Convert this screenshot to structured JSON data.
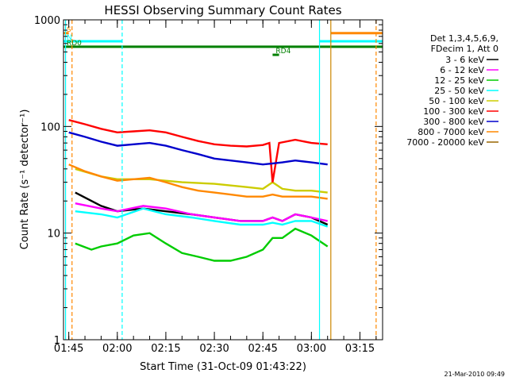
{
  "chart_data": {
    "type": "line",
    "title": "HESSI Observing Summary Count Rates",
    "xlabel": "Start Time (31-Oct-09 01:43:22)",
    "ylabel": "Count Rate (s⁻¹ detector⁻¹)",
    "y_scale": "log",
    "ylim": [
      1,
      1000
    ],
    "xlim": [
      "01:43:22",
      "03:22:00"
    ],
    "x_ticks": [
      "01:45",
      "02:00",
      "02:15",
      "02:30",
      "02:45",
      "03:00",
      "03:15"
    ],
    "y_ticks": [
      "1",
      "10",
      "100",
      "1000"
    ],
    "grid": false,
    "legend_position": "right",
    "legend_header": [
      "Det 1,3,4,5,6,9,",
      "FDecim 1, Att 0"
    ],
    "series": [
      {
        "name": "3 - 6 keV",
        "color": "#000000",
        "x": [
          "01:47",
          "01:55",
          "02:00",
          "02:08",
          "02:15",
          "02:23",
          "02:30",
          "02:38",
          "02:45",
          "02:48",
          "02:51",
          "02:55",
          "03:00",
          "03:05"
        ],
        "y": [
          24,
          18,
          16,
          17,
          16,
          15,
          14,
          13,
          13,
          14,
          13,
          15,
          14,
          12
        ]
      },
      {
        "name": "6 - 12 keV",
        "color": "#ff00ff",
        "x": [
          "01:47",
          "01:55",
          "02:00",
          "02:08",
          "02:15",
          "02:23",
          "02:30",
          "02:38",
          "02:45",
          "02:48",
          "02:51",
          "02:55",
          "03:00",
          "03:05"
        ],
        "y": [
          19,
          17,
          16,
          18,
          17,
          15,
          14,
          13,
          13,
          14,
          13,
          15,
          14,
          13
        ]
      },
      {
        "name": "12 - 25 keV",
        "color": "#00cc00",
        "x": [
          "01:47",
          "01:52",
          "01:55",
          "02:00",
          "02:05",
          "02:10",
          "02:15",
          "02:20",
          "02:25",
          "02:30",
          "02:35",
          "02:40",
          "02:45",
          "02:48",
          "02:51",
          "02:55",
          "03:00",
          "03:05"
        ],
        "y": [
          8,
          7,
          7.5,
          8,
          9.5,
          10,
          8,
          6.5,
          6,
          5.5,
          5.5,
          6,
          7,
          9,
          9,
          11,
          9.5,
          7.5
        ]
      },
      {
        "name": "25 - 50 keV",
        "color": "#00ffff",
        "x": [
          "01:47",
          "01:55",
          "02:00",
          "02:08",
          "02:15",
          "02:23",
          "02:30",
          "02:38",
          "02:45",
          "02:48",
          "02:51",
          "02:55",
          "03:00",
          "03:05"
        ],
        "y": [
          16,
          15,
          14,
          17,
          15,
          14,
          13,
          12,
          12,
          12.5,
          12,
          13,
          13,
          11.5
        ]
      },
      {
        "name": "50 - 100 keV",
        "color": "#cccc00",
        "x": [
          "01:47",
          "01:55",
          "02:00",
          "02:10",
          "02:20",
          "02:30",
          "02:40",
          "02:45",
          "02:48",
          "02:51",
          "02:55",
          "03:00",
          "03:05"
        ],
        "y": [
          40,
          34,
          32,
          32,
          30,
          29,
          27,
          26,
          30,
          26,
          25,
          25,
          24
        ]
      },
      {
        "name": "100 - 300 keV",
        "color": "#ff0000",
        "x": [
          "01:45",
          "01:50",
          "01:55",
          "02:00",
          "02:05",
          "02:10",
          "02:15",
          "02:20",
          "02:25",
          "02:30",
          "02:35",
          "02:40",
          "02:45",
          "02:47",
          "02:48",
          "02:50",
          "02:55",
          "03:00",
          "03:05"
        ],
        "y": [
          115,
          105,
          95,
          88,
          90,
          92,
          88,
          80,
          73,
          68,
          66,
          65,
          67,
          70,
          30,
          70,
          75,
          70,
          68
        ]
      },
      {
        "name": "300 - 800 keV",
        "color": "#0000cc",
        "x": [
          "01:45",
          "01:50",
          "01:55",
          "02:00",
          "02:05",
          "02:10",
          "02:15",
          "02:20",
          "02:25",
          "02:30",
          "02:35",
          "02:40",
          "02:45",
          "02:48",
          "02:51",
          "02:55",
          "03:00",
          "03:05"
        ],
        "y": [
          88,
          80,
          72,
          66,
          68,
          70,
          66,
          60,
          55,
          50,
          48,
          46,
          44,
          45,
          46,
          48,
          46,
          44
        ]
      },
      {
        "name": "800 - 7000 keV",
        "color": "#ff8800",
        "x": [
          "01:45",
          "01:50",
          "01:55",
          "02:00",
          "02:05",
          "02:10",
          "02:15",
          "02:20",
          "02:25",
          "02:30",
          "02:35",
          "02:40",
          "02:45",
          "02:48",
          "02:51",
          "02:55",
          "03:00",
          "03:05"
        ],
        "y": [
          44,
          38,
          34,
          31,
          32,
          33,
          30,
          27,
          25,
          24,
          23,
          22,
          22,
          23,
          22,
          22,
          22,
          21
        ]
      },
      {
        "name": "7000 - 20000 keV",
        "color": "#996600",
        "x": [],
        "y": []
      }
    ],
    "markers": [
      {
        "x": "01:44:00",
        "color": "#00ffff",
        "style": "solid"
      },
      {
        "x": "01:46:00",
        "color": "#ff8800",
        "style": "dashed"
      },
      {
        "x": "02:01:30",
        "color": "#00ffff",
        "style": "dashed"
      },
      {
        "x": "03:02:30",
        "color": "#00ffff",
        "style": "solid"
      },
      {
        "x": "03:06:00",
        "color": "#cc8800",
        "style": "solid"
      },
      {
        "x": "03:20:00",
        "color": "#ff8800",
        "style": "dashed"
      }
    ],
    "bands": [
      {
        "label": "S",
        "color": "#ff8800",
        "x_start": "01:43:22",
        "x_end": "01:45:00",
        "y": 750
      },
      {
        "label": "N",
        "color": "#00ffff",
        "x_start": "01:43:22",
        "x_end": "02:01:30",
        "y": 630
      },
      {
        "label": "",
        "color": "#00ffff",
        "x_start": "03:02:30",
        "x_end": "03:22:00",
        "y": 630
      },
      {
        "label": "",
        "color": "#ff8800",
        "x_start": "03:06:00",
        "x_end": "03:22:00",
        "y": 750
      },
      {
        "label": "RD0",
        "color": "#008000",
        "x_start": "01:43:22",
        "x_end": "03:22:00",
        "y": 560
      },
      {
        "label": "RD4",
        "color": "#008000",
        "x_start": "02:48:00",
        "x_end": "02:50:00",
        "y": 470
      }
    ],
    "footer_timestamp": "21-Mar-2010 09:49"
  }
}
